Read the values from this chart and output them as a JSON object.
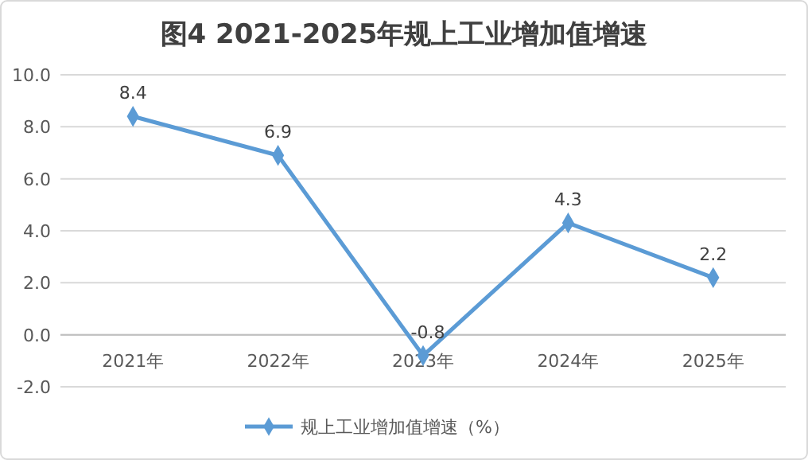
{
  "chart_data": {
    "type": "line",
    "title": "图4 2021-2025年规上工业增加值增速",
    "categories": [
      "2021年",
      "2022年",
      "2023年",
      "2024年",
      "2025年"
    ],
    "series": [
      {
        "name": "规上工业增加值增速（%）",
        "color": "#5b9bd5",
        "values": [
          8.4,
          6.9,
          -0.8,
          4.3,
          2.2
        ]
      }
    ],
    "ylim": [
      -2,
      10
    ],
    "yticks": [
      {
        "value": -2,
        "label": "-2.0"
      },
      {
        "value": 0,
        "label": "0.0"
      },
      {
        "value": 2,
        "label": "2.0"
      },
      {
        "value": 4,
        "label": "4.0"
      },
      {
        "value": 6,
        "label": "6.0"
      },
      {
        "value": 8,
        "label": "8.0"
      },
      {
        "value": 10,
        "label": "10.0"
      }
    ],
    "grid": "y",
    "legend": "bottom",
    "marker": "diamond",
    "line_style": "solid",
    "data_labels": true
  }
}
